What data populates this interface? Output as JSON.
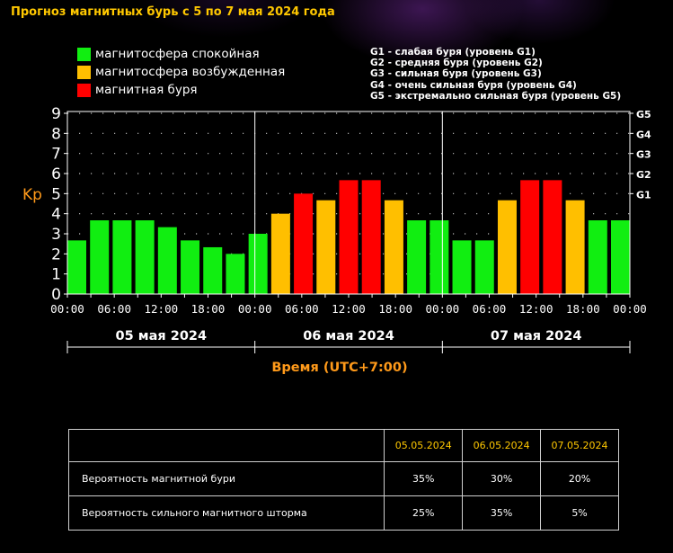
{
  "title": "Прогноз магнитных бурь с 5 по 7 мая 2024 года",
  "legend": [
    {
      "label": "магнитосфера спокойная",
      "color": "#11ee11"
    },
    {
      "label": "магнитосфера возбужденная",
      "color": "#ffbf00"
    },
    {
      "label": "магнитная буря",
      "color": "#ff0000"
    }
  ],
  "g_levels": [
    "G1 - слабая буря (уровень G1)",
    "G2 - средняя буря (уровень G2)",
    "G3 - сильная буря (уровень G3)",
    "G4 - очень сильная буря (уровень G4)",
    "G5 - экстремально сильная буря (уровень G5)"
  ],
  "chart_data": {
    "type": "bar",
    "ylabel": "Kp",
    "xlabel": "Время (UTC+7:00)",
    "ylim": [
      0,
      9
    ],
    "y_ticks": [
      "0",
      "1",
      "2",
      "3",
      "4",
      "5",
      "6",
      "7",
      "8",
      "9"
    ],
    "right_ticks": [
      {
        "label": "G1",
        "value": 5
      },
      {
        "label": "G2",
        "value": 6
      },
      {
        "label": "G3",
        "value": 7
      },
      {
        "label": "G4",
        "value": 8
      },
      {
        "label": "G5",
        "value": 9
      }
    ],
    "x_tick_labels": [
      "00:00",
      "06:00",
      "12:00",
      "18:00",
      "00:00",
      "06:00",
      "12:00",
      "18:00",
      "00:00",
      "06:00",
      "12:00",
      "18:00",
      "00:00"
    ],
    "days": [
      "05 мая 2024",
      "06 мая 2024",
      "07 мая 2024"
    ],
    "grid": true,
    "values": [
      2.67,
      3.67,
      3.67,
      3.67,
      3.33,
      2.67,
      2.33,
      2.0,
      3.0,
      4.0,
      5.0,
      4.67,
      5.67,
      5.67,
      4.67,
      3.67,
      3.67,
      2.67,
      2.67,
      4.67,
      5.67,
      5.67,
      4.67,
      3.67,
      3.67
    ],
    "colors": {
      "quiet": "#11ee11",
      "active": "#ffbf00",
      "storm": "#ff0000"
    }
  },
  "table": {
    "headers": [
      "",
      "05.05.2024",
      "06.05.2024",
      "07.05.2024"
    ],
    "rows": [
      {
        "label": "Вероятность магнитной бури",
        "values": [
          "35%",
          "30%",
          "20%"
        ]
      },
      {
        "label": "Вероятность сильного магнитного шторма",
        "values": [
          "25%",
          "35%",
          "5%"
        ]
      }
    ]
  }
}
